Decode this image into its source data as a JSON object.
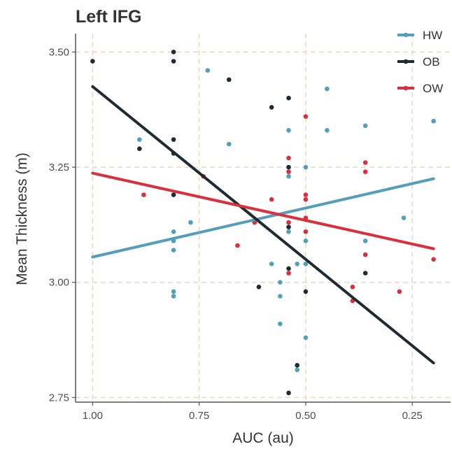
{
  "chart_data": {
    "type": "scatter",
    "title": "Left IFG",
    "xlabel": "AUC (au)",
    "ylabel": "Mean Thickness (m)",
    "x_reversed": true,
    "xlim": [
      1.04,
      0.16
    ],
    "ylim": [
      2.74,
      3.54
    ],
    "x_ticks": [
      1.0,
      0.75,
      0.5,
      0.25
    ],
    "x_tick_labels": [
      "1.00",
      "0.75",
      "0.50",
      "0.25"
    ],
    "y_ticks": [
      2.75,
      3.0,
      3.25,
      3.5
    ],
    "y_tick_labels": [
      "2.75",
      "3.00",
      "3.25",
      "3.50"
    ],
    "grid": true,
    "legend_position": "top-right",
    "series": [
      {
        "name": "HW",
        "color": "#539fb9",
        "points": [
          [
            0.89,
            3.31
          ],
          [
            0.81,
            3.11
          ],
          [
            0.81,
            3.09
          ],
          [
            0.81,
            3.07
          ],
          [
            0.81,
            2.98
          ],
          [
            0.81,
            2.97
          ],
          [
            0.77,
            3.13
          ],
          [
            0.73,
            3.46
          ],
          [
            0.68,
            3.3
          ],
          [
            0.58,
            3.04
          ],
          [
            0.56,
            3.0
          ],
          [
            0.56,
            2.97
          ],
          [
            0.56,
            2.91
          ],
          [
            0.52,
            2.82
          ],
          [
            0.52,
            2.81
          ],
          [
            0.54,
            3.33
          ],
          [
            0.54,
            3.23
          ],
          [
            0.54,
            3.11
          ],
          [
            0.52,
            3.04
          ],
          [
            0.5,
            3.25
          ],
          [
            0.5,
            3.09
          ],
          [
            0.5,
            3.04
          ],
          [
            0.5,
            2.88
          ],
          [
            0.45,
            3.42
          ],
          [
            0.45,
            3.33
          ],
          [
            0.36,
            3.34
          ],
          [
            0.36,
            3.09
          ],
          [
            0.27,
            3.14
          ],
          [
            0.2,
            3.35
          ]
        ],
        "trend": [
          [
            1.0,
            3.055
          ],
          [
            0.2,
            3.225
          ]
        ]
      },
      {
        "name": "OB",
        "color": "#1e2b32",
        "points": [
          [
            1.0,
            3.48
          ],
          [
            0.81,
            3.5
          ],
          [
            0.81,
            3.48
          ],
          [
            0.89,
            3.29
          ],
          [
            0.81,
            3.31
          ],
          [
            0.81,
            3.28
          ],
          [
            0.81,
            3.19
          ],
          [
            0.68,
            3.44
          ],
          [
            0.58,
            3.38
          ],
          [
            0.54,
            3.4
          ],
          [
            0.54,
            3.25
          ],
          [
            0.54,
            3.12
          ],
          [
            0.54,
            3.03
          ],
          [
            0.5,
            2.98
          ],
          [
            0.61,
            2.99
          ],
          [
            0.52,
            2.82
          ],
          [
            0.54,
            2.76
          ],
          [
            0.36,
            3.02
          ]
        ],
        "trend": [
          [
            1.0,
            3.425
          ],
          [
            0.2,
            2.825
          ]
        ]
      },
      {
        "name": "OW",
        "color": "#da303d",
        "points": [
          [
            0.88,
            3.19
          ],
          [
            0.74,
            3.23
          ],
          [
            0.66,
            3.08
          ],
          [
            0.62,
            3.13
          ],
          [
            0.58,
            3.18
          ],
          [
            0.54,
            3.27
          ],
          [
            0.54,
            3.24
          ],
          [
            0.54,
            3.13
          ],
          [
            0.54,
            3.02
          ],
          [
            0.5,
            3.36
          ],
          [
            0.5,
            3.19
          ],
          [
            0.5,
            3.18
          ],
          [
            0.5,
            3.14
          ],
          [
            0.5,
            3.11
          ],
          [
            0.39,
            2.99
          ],
          [
            0.39,
            2.96
          ],
          [
            0.36,
            3.26
          ],
          [
            0.36,
            3.24
          ],
          [
            0.36,
            3.06
          ],
          [
            0.28,
            2.98
          ],
          [
            0.2,
            3.05
          ]
        ],
        "trend": [
          [
            1.0,
            3.237
          ],
          [
            0.2,
            3.073
          ]
        ]
      }
    ]
  }
}
